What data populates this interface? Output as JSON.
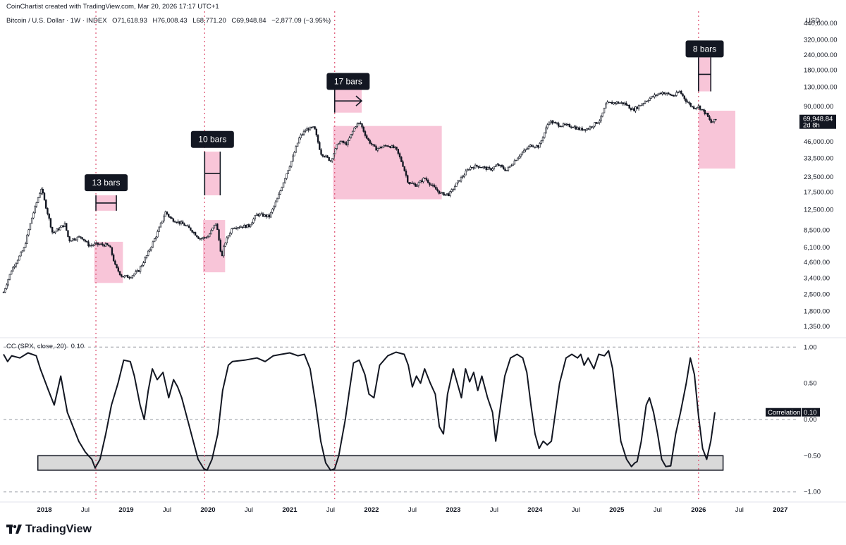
{
  "credit": "CoinChartist created with TradingView.com, Mar 20, 2026 17:17 UTC+1",
  "symbol": {
    "name": "Bitcoin / U.S. Dollar · 1W · INDEX",
    "open": "O71,618.93",
    "high": "H76,008.43",
    "low": "L68,771.20",
    "close": "C69,948.84",
    "change": "−2,877.09 (−3.95%)"
  },
  "currency": "USD",
  "indicator": {
    "name": "CC (SPX, close, 20)",
    "value": "0.10"
  },
  "price_tag": {
    "value": "69,948.84",
    "countdown": "2d 8h"
  },
  "correlation_tag": {
    "label": "Correlation",
    "value": "0.10"
  },
  "logo": "TradingView",
  "colors": {
    "highlight": "#f8c5d8",
    "vline": "#e05c7a",
    "candle": "#131722",
    "band": "#d9d9d9",
    "label_bg": "#131722"
  },
  "chart_data": [
    {
      "type": "candlestick",
      "title": "Bitcoin / U.S. Dollar · 1W · INDEX",
      "y_scale": "log",
      "ylim": [
        1150,
        600000
      ],
      "xlim": [
        2017.5,
        2027.2
      ],
      "y_ticks": [
        {
          "v": 440000,
          "label": "440,000.00"
        },
        {
          "v": 320000,
          "label": "320,000.00"
        },
        {
          "v": 240000,
          "label": "240,000.00"
        },
        {
          "v": 180000,
          "label": "180,000.00"
        },
        {
          "v": 130000,
          "label": "130,000.00"
        },
        {
          "v": 90000,
          "label": "90,000.00"
        },
        {
          "v": 46000,
          "label": "46,000.00"
        },
        {
          "v": 33500,
          "label": "33,500.00"
        },
        {
          "v": 23500,
          "label": "23,500.00"
        },
        {
          "v": 17500,
          "label": "17,500.00"
        },
        {
          "v": 12500,
          "label": "12,500.00"
        },
        {
          "v": 8500,
          "label": "8,500.00"
        },
        {
          "v": 6100,
          "label": "6,100.00"
        },
        {
          "v": 4600,
          "label": "4,600.00"
        },
        {
          "v": 3400,
          "label": "3,400.00"
        },
        {
          "v": 2500,
          "label": "2,500.00"
        },
        {
          "v": 1800,
          "label": "1,800.00"
        },
        {
          "v": 1350,
          "label": "1,350.00"
        }
      ],
      "price_path": [
        [
          2017.5,
          2600
        ],
        [
          2017.6,
          4000
        ],
        [
          2017.75,
          6000
        ],
        [
          2017.85,
          11000
        ],
        [
          2017.96,
          19000
        ],
        [
          2018.05,
          11000
        ],
        [
          2018.1,
          8000
        ],
        [
          2018.25,
          9500
        ],
        [
          2018.3,
          7000
        ],
        [
          2018.45,
          7500
        ],
        [
          2018.55,
          6300
        ],
        [
          2018.62,
          6500
        ],
        [
          2018.75,
          6400
        ],
        [
          2018.8,
          6200
        ],
        [
          2018.87,
          4200
        ],
        [
          2018.95,
          3500
        ],
        [
          2019.05,
          3500
        ],
        [
          2019.15,
          3900
        ],
        [
          2019.25,
          5200
        ],
        [
          2019.38,
          8000
        ],
        [
          2019.48,
          12000
        ],
        [
          2019.55,
          10500
        ],
        [
          2019.7,
          9500
        ],
        [
          2019.8,
          8500
        ],
        [
          2019.9,
          7200
        ],
        [
          2020.0,
          7500
        ],
        [
          2020.1,
          9800
        ],
        [
          2020.17,
          5000
        ],
        [
          2020.2,
          6500
        ],
        [
          2020.3,
          9000
        ],
        [
          2020.5,
          9200
        ],
        [
          2020.6,
          11500
        ],
        [
          2020.75,
          11000
        ],
        [
          2020.85,
          15500
        ],
        [
          2020.95,
          24000
        ],
        [
          2021.03,
          33000
        ],
        [
          2021.12,
          50000
        ],
        [
          2021.2,
          58000
        ],
        [
          2021.3,
          60000
        ],
        [
          2021.38,
          37000
        ],
        [
          2021.5,
          32000
        ],
        [
          2021.6,
          46000
        ],
        [
          2021.7,
          44000
        ],
        [
          2021.8,
          62000
        ],
        [
          2021.86,
          66000
        ],
        [
          2021.95,
          48000
        ],
        [
          2022.05,
          40000
        ],
        [
          2022.2,
          43000
        ],
        [
          2022.3,
          40000
        ],
        [
          2022.38,
          30000
        ],
        [
          2022.45,
          21000
        ],
        [
          2022.55,
          20000
        ],
        [
          2022.65,
          23000
        ],
        [
          2022.75,
          19500
        ],
        [
          2022.85,
          17000
        ],
        [
          2022.95,
          16800
        ],
        [
          2023.05,
          21000
        ],
        [
          2023.2,
          28000
        ],
        [
          2023.3,
          29000
        ],
        [
          2023.45,
          27000
        ],
        [
          2023.55,
          29500
        ],
        [
          2023.65,
          26500
        ],
        [
          2023.8,
          35000
        ],
        [
          2023.95,
          43000
        ],
        [
          2024.05,
          42000
        ],
        [
          2024.17,
          68000
        ],
        [
          2024.3,
          63000
        ],
        [
          2024.45,
          62000
        ],
        [
          2024.55,
          58000
        ],
        [
          2024.65,
          59000
        ],
        [
          2024.8,
          70000
        ],
        [
          2024.87,
          95000
        ],
        [
          2025.0,
          97000
        ],
        [
          2025.1,
          95000
        ],
        [
          2025.2,
          84000
        ],
        [
          2025.3,
          94000
        ],
        [
          2025.4,
          105000
        ],
        [
          2025.55,
          118000
        ],
        [
          2025.7,
          110000
        ],
        [
          2025.77,
          120000
        ],
        [
          2025.85,
          100000
        ],
        [
          2025.93,
          88000
        ],
        [
          2026.0,
          90000
        ],
        [
          2026.1,
          77000
        ],
        [
          2026.15,
          66000
        ],
        [
          2026.22,
          70000
        ]
      ],
      "highlights": [
        {
          "x0": 2018.61,
          "x1": 2018.96,
          "y0": 3100,
          "y1": 6800
        },
        {
          "x0": 2019.94,
          "x1": 2020.21,
          "y0": 3800,
          "y1": 10300
        },
        {
          "x0": 2021.53,
          "x1": 2022.86,
          "y0": 15300,
          "y1": 62000
        },
        {
          "x0": 2026.0,
          "x1": 2026.45,
          "y0": 27500,
          "y1": 83000
        }
      ],
      "markers": [
        {
          "x": 2018.63,
          "label": "13 bars",
          "span": 0.25,
          "type": "measure",
          "y_top": 16500,
          "y_bot": 12300,
          "label_y": 21000
        },
        {
          "x": 2019.96,
          "label": "10 bars",
          "span": 0.19,
          "type": "measure",
          "y_top": 38000,
          "y_bot": 16500,
          "label_y": 48000
        },
        {
          "x": 2021.55,
          "label": "17 bars",
          "span": 0.33,
          "type": "arrow",
          "y_top": 125000,
          "y_bot": 80000,
          "label_y": 145000
        },
        {
          "x": 2026.0,
          "label": "8 bars",
          "span": 0.15,
          "type": "measure",
          "y_top": 230000,
          "y_bot": 120000,
          "label_y": 270000
        }
      ]
    },
    {
      "type": "line",
      "title": "CC (SPX, close, 20)",
      "ylim": [
        -1.1,
        1.1
      ],
      "y_ticks": [
        {
          "v": 1.0,
          "label": "1.00"
        },
        {
          "v": 0.5,
          "label": "0.50"
        },
        {
          "v": 0.0,
          "label": "0.00"
        },
        {
          "v": -0.5,
          "label": "−0.50"
        },
        {
          "v": -1.0,
          "label": "−1.00"
        }
      ],
      "dashed_levels": [
        1.0,
        0.0,
        -1.0
      ],
      "band": {
        "x0": 2017.92,
        "x1": 2026.3,
        "y0": -0.5,
        "y1": -0.7
      },
      "values": [
        [
          2017.5,
          0.9
        ],
        [
          2017.55,
          0.8
        ],
        [
          2017.6,
          0.88
        ],
        [
          2017.7,
          0.85
        ],
        [
          2017.8,
          0.92
        ],
        [
          2017.9,
          0.88
        ],
        [
          2017.95,
          0.7
        ],
        [
          2018.05,
          0.4
        ],
        [
          2018.12,
          0.2
        ],
        [
          2018.2,
          0.6
        ],
        [
          2018.28,
          0.1
        ],
        [
          2018.35,
          -0.1
        ],
        [
          2018.42,
          -0.3
        ],
        [
          2018.5,
          -0.45
        ],
        [
          2018.58,
          -0.55
        ],
        [
          2018.62,
          -0.67
        ],
        [
          2018.68,
          -0.55
        ],
        [
          2018.75,
          -0.2
        ],
        [
          2018.82,
          0.2
        ],
        [
          2018.9,
          0.5
        ],
        [
          2018.97,
          0.82
        ],
        [
          2019.05,
          0.8
        ],
        [
          2019.1,
          0.6
        ],
        [
          2019.17,
          0.2
        ],
        [
          2019.22,
          0.0
        ],
        [
          2019.27,
          0.4
        ],
        [
          2019.32,
          0.7
        ],
        [
          2019.38,
          0.55
        ],
        [
          2019.45,
          0.65
        ],
        [
          2019.52,
          0.3
        ],
        [
          2019.58,
          0.55
        ],
        [
          2019.63,
          0.45
        ],
        [
          2019.68,
          0.3
        ],
        [
          2019.75,
          0.0
        ],
        [
          2019.82,
          -0.3
        ],
        [
          2019.88,
          -0.55
        ],
        [
          2019.95,
          -0.68
        ],
        [
          2019.99,
          -0.7
        ],
        [
          2020.05,
          -0.55
        ],
        [
          2020.12,
          -0.2
        ],
        [
          2020.18,
          0.4
        ],
        [
          2020.25,
          0.75
        ],
        [
          2020.3,
          0.8
        ],
        [
          2020.45,
          0.82
        ],
        [
          2020.6,
          0.85
        ],
        [
          2020.7,
          0.8
        ],
        [
          2020.8,
          0.88
        ],
        [
          2020.9,
          0.9
        ],
        [
          2021.0,
          0.92
        ],
        [
          2021.1,
          0.88
        ],
        [
          2021.18,
          0.9
        ],
        [
          2021.25,
          0.7
        ],
        [
          2021.32,
          0.2
        ],
        [
          2021.38,
          -0.3
        ],
        [
          2021.44,
          -0.6
        ],
        [
          2021.5,
          -0.7
        ],
        [
          2021.55,
          -0.68
        ],
        [
          2021.6,
          -0.5
        ],
        [
          2021.68,
          0.0
        ],
        [
          2021.73,
          0.4
        ],
        [
          2021.78,
          0.78
        ],
        [
          2021.85,
          0.82
        ],
        [
          2021.92,
          0.62
        ],
        [
          2021.97,
          0.35
        ],
        [
          2022.03,
          0.3
        ],
        [
          2022.1,
          0.75
        ],
        [
          2022.2,
          0.88
        ],
        [
          2022.3,
          0.93
        ],
        [
          2022.4,
          0.9
        ],
        [
          2022.45,
          0.75
        ],
        [
          2022.5,
          0.45
        ],
        [
          2022.55,
          0.6
        ],
        [
          2022.6,
          0.5
        ],
        [
          2022.65,
          0.7
        ],
        [
          2022.72,
          0.5
        ],
        [
          2022.78,
          0.35
        ],
        [
          2022.83,
          -0.1
        ],
        [
          2022.88,
          -0.2
        ],
        [
          2022.93,
          0.35
        ],
        [
          2023.0,
          0.7
        ],
        [
          2023.05,
          0.5
        ],
        [
          2023.1,
          0.3
        ],
        [
          2023.15,
          0.7
        ],
        [
          2023.2,
          0.52
        ],
        [
          2023.25,
          0.65
        ],
        [
          2023.3,
          0.4
        ],
        [
          2023.35,
          0.6
        ],
        [
          2023.42,
          0.3
        ],
        [
          2023.48,
          0.1
        ],
        [
          2023.52,
          -0.3
        ],
        [
          2023.58,
          0.2
        ],
        [
          2023.63,
          0.6
        ],
        [
          2023.7,
          0.85
        ],
        [
          2023.78,
          0.9
        ],
        [
          2023.85,
          0.85
        ],
        [
          2023.9,
          0.65
        ],
        [
          2023.95,
          0.2
        ],
        [
          2024.0,
          -0.2
        ],
        [
          2024.05,
          -0.4
        ],
        [
          2024.1,
          -0.3
        ],
        [
          2024.15,
          -0.35
        ],
        [
          2024.2,
          -0.3
        ],
        [
          2024.3,
          0.5
        ],
        [
          2024.38,
          0.85
        ],
        [
          2024.45,
          0.9
        ],
        [
          2024.52,
          0.85
        ],
        [
          2024.56,
          0.9
        ],
        [
          2024.6,
          0.75
        ],
        [
          2024.65,
          0.85
        ],
        [
          2024.72,
          0.7
        ],
        [
          2024.78,
          0.9
        ],
        [
          2024.85,
          0.88
        ],
        [
          2024.9,
          0.95
        ],
        [
          2024.95,
          0.7
        ],
        [
          2025.0,
          0.2
        ],
        [
          2025.05,
          -0.3
        ],
        [
          2025.12,
          -0.55
        ],
        [
          2025.18,
          -0.65
        ],
        [
          2025.22,
          -0.6
        ],
        [
          2025.25,
          -0.58
        ],
        [
          2025.3,
          -0.3
        ],
        [
          2025.36,
          0.2
        ],
        [
          2025.4,
          0.3
        ],
        [
          2025.45,
          0.1
        ],
        [
          2025.5,
          -0.2
        ],
        [
          2025.55,
          -0.55
        ],
        [
          2025.6,
          -0.65
        ],
        [
          2025.66,
          -0.64
        ],
        [
          2025.72,
          -0.2
        ],
        [
          2025.78,
          0.1
        ],
        [
          2025.85,
          0.5
        ],
        [
          2025.9,
          0.85
        ],
        [
          2025.95,
          0.62
        ],
        [
          2026.0,
          0.05
        ],
        [
          2026.05,
          -0.4
        ],
        [
          2026.1,
          -0.55
        ],
        [
          2026.15,
          -0.3
        ],
        [
          2026.2,
          0.1
        ]
      ]
    }
  ],
  "time_axis": [
    {
      "x": 2018.0,
      "label": "2018",
      "major": true
    },
    {
      "x": 2018.5,
      "label": "Jul",
      "major": false
    },
    {
      "x": 2019.0,
      "label": "2019",
      "major": true
    },
    {
      "x": 2019.5,
      "label": "Jul",
      "major": false
    },
    {
      "x": 2020.0,
      "label": "2020",
      "major": true
    },
    {
      "x": 2020.5,
      "label": "Jul",
      "major": false
    },
    {
      "x": 2021.0,
      "label": "2021",
      "major": true
    },
    {
      "x": 2021.5,
      "label": "Jul",
      "major": false
    },
    {
      "x": 2022.0,
      "label": "2022",
      "major": true
    },
    {
      "x": 2022.5,
      "label": "Jul",
      "major": false
    },
    {
      "x": 2023.0,
      "label": "2023",
      "major": true
    },
    {
      "x": 2023.5,
      "label": "Jul",
      "major": false
    },
    {
      "x": 2024.0,
      "label": "2024",
      "major": true
    },
    {
      "x": 2024.5,
      "label": "Jul",
      "major": false
    },
    {
      "x": 2025.0,
      "label": "2025",
      "major": true
    },
    {
      "x": 2025.5,
      "label": "Jul",
      "major": false
    },
    {
      "x": 2026.0,
      "label": "2026",
      "major": true
    },
    {
      "x": 2026.5,
      "label": "Jul",
      "major": false
    },
    {
      "x": 2027.0,
      "label": "2027",
      "major": true
    }
  ],
  "vertical_lines": [
    2018.63,
    2019.96,
    2021.55,
    2026.0
  ]
}
